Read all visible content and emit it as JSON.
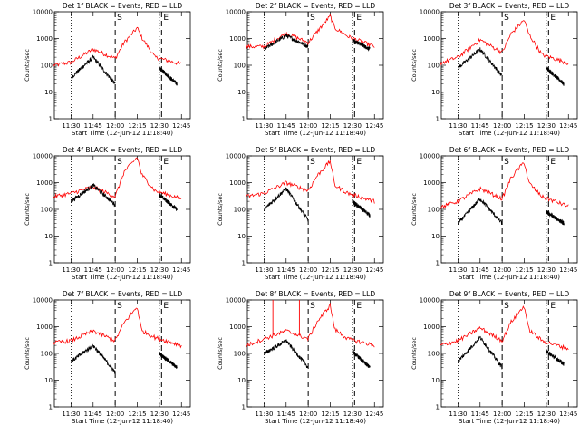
{
  "chart_data": [
    {
      "type": "line",
      "title": "Det 1f BLACK = Events, RED = LLD",
      "ylabel": "Counts/sec",
      "xlabel": "Start Time (12-Jun-12 11:18:40)",
      "x_ticks": [
        "11:30",
        "11:45",
        "12:00",
        "12:15",
        "12:30",
        "12:45"
      ],
      "y_ticks": [
        "1",
        "10",
        "100",
        "1000",
        "10000"
      ],
      "ylim": [
        1,
        10000
      ],
      "log_y": true,
      "markers": [
        {
          "label": "S",
          "time": "12:00"
        },
        {
          "label": "E",
          "time": "12:30"
        }
      ],
      "series": [
        {
          "color": "#ff0000",
          "key": [
            [
              11.3,
              100
            ],
            [
              11.5,
              130
            ],
            [
              11.75,
              400
            ],
            [
              12.0,
              180
            ],
            [
              12.1,
              700
            ],
            [
              12.25,
              2500
            ],
            [
              12.3,
              1100
            ],
            [
              12.45,
              200
            ],
            [
              12.75,
              110
            ]
          ]
        },
        {
          "color": "#000000",
          "key": [
            [
              11.5,
              35
            ],
            [
              11.75,
              200
            ],
            [
              12.0,
              20
            ]
          ],
          "key2": [
            [
              12.5,
              80
            ],
            [
              12.7,
              20
            ]
          ]
        }
      ]
    },
    {
      "type": "line",
      "title": "Det 2f BLACK = Events, RED = LLD",
      "ylabel": "Counts/sec",
      "xlabel": "Start Time (12-Jun-12 11:18:40)",
      "x_ticks": [
        "11:30",
        "11:45",
        "12:00",
        "12:15",
        "12:30",
        "12:45"
      ],
      "y_ticks": [
        "1",
        "10",
        "100",
        "1000",
        "10000"
      ],
      "ylim": [
        1,
        10000
      ],
      "log_y": true,
      "markers": [
        {
          "label": "S",
          "time": "12:00"
        },
        {
          "label": "E",
          "time": "12:30"
        }
      ],
      "series": [
        {
          "color": "#ff0000",
          "key": [
            [
              11.3,
              500
            ],
            [
              11.5,
              500
            ],
            [
              11.75,
              1600
            ],
            [
              12.0,
              700
            ],
            [
              12.1,
              1800
            ],
            [
              12.25,
              7000
            ],
            [
              12.3,
              2500
            ],
            [
              12.45,
              1200
            ],
            [
              12.75,
              500
            ]
          ]
        },
        {
          "color": "#000000",
          "key": [
            [
              11.5,
              400
            ],
            [
              11.75,
              1300
            ],
            [
              12.0,
              500
            ]
          ],
          "key2": [
            [
              12.5,
              900
            ],
            [
              12.7,
              400
            ]
          ]
        }
      ]
    },
    {
      "type": "line",
      "title": "Det 3f BLACK = Events, RED = LLD",
      "ylabel": "Counts/sec",
      "xlabel": "Start Time (12-Jun-12 11:18:40)",
      "x_ticks": [
        "11:30",
        "11:45",
        "12:00",
        "12:15",
        "12:30",
        "12:45"
      ],
      "y_ticks": [
        "1",
        "10",
        "100",
        "1000",
        "10000"
      ],
      "ylim": [
        1,
        10000
      ],
      "log_y": true,
      "markers": [
        {
          "label": "S",
          "time": "12:00"
        },
        {
          "label": "E",
          "time": "12:30"
        }
      ],
      "series": [
        {
          "color": "#ff0000",
          "key": [
            [
              11.3,
              120
            ],
            [
              11.5,
              200
            ],
            [
              11.75,
              900
            ],
            [
              12.0,
              300
            ],
            [
              12.1,
              1500
            ],
            [
              12.25,
              5000
            ],
            [
              12.3,
              1500
            ],
            [
              12.45,
              250
            ],
            [
              12.75,
              120
            ]
          ]
        },
        {
          "color": "#000000",
          "key": [
            [
              11.5,
              80
            ],
            [
              11.75,
              400
            ],
            [
              12.0,
              40
            ]
          ],
          "key2": [
            [
              12.5,
              80
            ],
            [
              12.7,
              20
            ]
          ]
        }
      ]
    },
    {
      "type": "line",
      "title": "Det 4f BLACK = Events, RED = LLD",
      "ylabel": "Counts/sec",
      "xlabel": "Start Time (12-Jun-12 11:18:40)",
      "x_ticks": [
        "11:30",
        "11:45",
        "12:00",
        "12:15",
        "12:30",
        "12:45"
      ],
      "y_ticks": [
        "1",
        "10",
        "100",
        "1000",
        "10000"
      ],
      "ylim": [
        1,
        10000
      ],
      "log_y": true,
      "markers": [
        {
          "label": "S",
          "time": "12:00"
        },
        {
          "label": "E",
          "time": "12:30"
        }
      ],
      "series": [
        {
          "color": "#ff0000",
          "key": [
            [
              11.3,
              300
            ],
            [
              11.5,
              400
            ],
            [
              11.75,
              700
            ],
            [
              12.0,
              300
            ],
            [
              12.1,
              2500
            ],
            [
              12.25,
              9000
            ],
            [
              12.3,
              2000
            ],
            [
              12.45,
              500
            ],
            [
              12.75,
              250
            ]
          ]
        },
        {
          "color": "#000000",
          "key": [
            [
              11.5,
              200
            ],
            [
              11.75,
              800
            ],
            [
              12.0,
              150
            ]
          ],
          "key2": [
            [
              12.5,
              350
            ],
            [
              12.7,
              100
            ]
          ]
        }
      ]
    },
    {
      "type": "line",
      "title": "Det 5f BLACK = Events, RED = LLD",
      "ylabel": "Counts/sec",
      "xlabel": "Start Time (12-Jun-12 11:18:40)",
      "x_ticks": [
        "11:30",
        "11:45",
        "12:00",
        "12:15",
        "12:30",
        "12:45"
      ],
      "y_ticks": [
        "1",
        "10",
        "100",
        "1000",
        "10000"
      ],
      "ylim": [
        1,
        10000
      ],
      "log_y": true,
      "markers": [
        {
          "label": "S",
          "time": "12:00"
        },
        {
          "label": "E",
          "time": "12:30"
        }
      ],
      "series": [
        {
          "color": "#ff0000",
          "key": [
            [
              11.3,
              300
            ],
            [
              11.5,
              400
            ],
            [
              11.75,
              1000
            ],
            [
              12.0,
              500
            ],
            [
              12.1,
              1800
            ],
            [
              12.25,
              6500
            ],
            [
              12.3,
              800
            ],
            [
              12.45,
              400
            ],
            [
              12.75,
              200
            ]
          ]
        },
        {
          "color": "#000000",
          "key": [
            [
              11.5,
              100
            ],
            [
              11.75,
              600
            ],
            [
              12.0,
              40
            ]
          ],
          "key2": [
            [
              12.5,
              200
            ],
            [
              12.7,
              60
            ]
          ]
        }
      ]
    },
    {
      "type": "line",
      "title": "Det 6f BLACK = Events, RED = LLD",
      "ylabel": "Counts/sec",
      "xlabel": "Start Time (12-Jun-12 11:18:40)",
      "x_ticks": [
        "11:30",
        "11:45",
        "12:00",
        "12:15",
        "12:30",
        "12:45"
      ],
      "y_ticks": [
        "1",
        "10",
        "100",
        "1000",
        "10000"
      ],
      "ylim": [
        1,
        10000
      ],
      "log_y": true,
      "markers": [
        {
          "label": "S",
          "time": "12:00"
        },
        {
          "label": "E",
          "time": "12:30"
        }
      ],
      "series": [
        {
          "color": "#ff0000",
          "key": [
            [
              11.3,
              120
            ],
            [
              11.5,
              200
            ],
            [
              11.75,
              600
            ],
            [
              12.0,
              250
            ],
            [
              12.1,
              1500
            ],
            [
              12.25,
              6000
            ],
            [
              12.3,
              1000
            ],
            [
              12.45,
              300
            ],
            [
              12.75,
              130
            ]
          ]
        },
        {
          "color": "#000000",
          "key": [
            [
              11.5,
              30
            ],
            [
              11.75,
              250
            ],
            [
              12.0,
              30
            ]
          ],
          "key2": [
            [
              12.5,
              80
            ],
            [
              12.7,
              30
            ]
          ]
        }
      ]
    },
    {
      "type": "line",
      "title": "Det 7f BLACK = Events, RED = LLD",
      "ylabel": "Counts/sec",
      "xlabel": "Start Time (12-Jun-12 11:18:40)",
      "x_ticks": [
        "11:30",
        "11:45",
        "12:00",
        "12:15",
        "12:30",
        "12:45"
      ],
      "y_ticks": [
        "1",
        "10",
        "100",
        "1000",
        "10000"
      ],
      "ylim": [
        1,
        10000
      ],
      "log_y": true,
      "markers": [
        {
          "label": "S",
          "time": "12:00"
        },
        {
          "label": "E",
          "time": "12:30"
        }
      ],
      "series": [
        {
          "color": "#ff0000",
          "key": [
            [
              11.3,
              250
            ],
            [
              11.5,
              300
            ],
            [
              11.75,
              700
            ],
            [
              12.0,
              300
            ],
            [
              12.1,
              1400
            ],
            [
              12.25,
              5500
            ],
            [
              12.3,
              700
            ],
            [
              12.45,
              400
            ],
            [
              12.75,
              200
            ]
          ]
        },
        {
          "color": "#000000",
          "key": [
            [
              11.5,
              50
            ],
            [
              11.75,
              200
            ],
            [
              12.0,
              20
            ]
          ],
          "key2": [
            [
              12.5,
              100
            ],
            [
              12.7,
              30
            ]
          ]
        }
      ]
    },
    {
      "type": "line",
      "title": "Det 8f BLACK = Events, RED = LLD",
      "ylabel": "Counts/sec",
      "xlabel": "Start Time (12-Jun-12 11:18:40)",
      "x_ticks": [
        "11:30",
        "11:45",
        "12:00",
        "12:15",
        "12:30",
        "12:45"
      ],
      "y_ticks": [
        "1",
        "10",
        "100",
        "1000",
        "10000"
      ],
      "ylim": [
        1,
        10000
      ],
      "log_y": true,
      "markers": [
        {
          "label": "S",
          "time": "12:00"
        },
        {
          "label": "E",
          "time": "12:30"
        }
      ],
      "series": [
        {
          "color": "#ff0000",
          "key": [
            [
              11.3,
              200
            ],
            [
              11.5,
              350
            ],
            [
              11.75,
              700
            ],
            [
              12.0,
              350
            ],
            [
              12.1,
              1500
            ],
            [
              12.25,
              6500
            ],
            [
              12.3,
              800
            ],
            [
              12.45,
              350
            ],
            [
              12.75,
              200
            ]
          ],
          "spikes": [
            11.6,
            11.85,
            11.9
          ]
        },
        {
          "color": "#000000",
          "key": [
            [
              11.5,
              100
            ],
            [
              11.75,
              300
            ],
            [
              12.0,
              30
            ]
          ],
          "key2": [
            [
              12.5,
              120
            ],
            [
              12.7,
              30
            ]
          ]
        }
      ]
    },
    {
      "type": "line",
      "title": "Det 9f BLACK = Events, RED = LLD",
      "ylabel": "Counts/sec",
      "xlabel": "Start Time (12-Jun-12 11:18:40)",
      "x_ticks": [
        "11:30",
        "11:45",
        "12:00",
        "12:15",
        "12:30",
        "12:45"
      ],
      "y_ticks": [
        "1",
        "10",
        "100",
        "1000",
        "10000"
      ],
      "ylim": [
        1,
        10000
      ],
      "log_y": true,
      "markers": [
        {
          "label": "S",
          "time": "12:00"
        },
        {
          "label": "E",
          "time": "12:30"
        }
      ],
      "series": [
        {
          "color": "#ff0000",
          "key": [
            [
              11.3,
              200
            ],
            [
              11.5,
              300
            ],
            [
              11.75,
              900
            ],
            [
              12.0,
              300
            ],
            [
              12.1,
              1500
            ],
            [
              12.25,
              6000
            ],
            [
              12.3,
              800
            ],
            [
              12.45,
              300
            ],
            [
              12.75,
              150
            ]
          ]
        },
        {
          "color": "#000000",
          "key": [
            [
              11.5,
              50
            ],
            [
              11.75,
              400
            ],
            [
              12.0,
              30
            ]
          ],
          "key2": [
            [
              12.5,
              120
            ],
            [
              12.7,
              40
            ]
          ]
        }
      ]
    }
  ]
}
